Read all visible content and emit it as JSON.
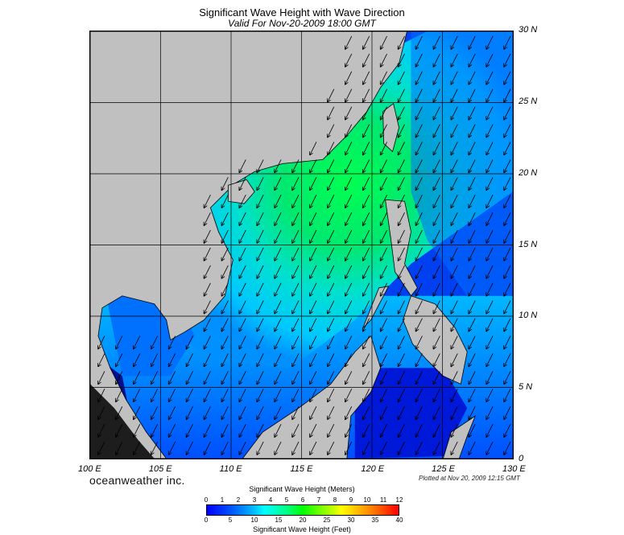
{
  "title": "Significant Wave Height with Wave Direction",
  "subtitle": "Valid For Nov-20-2009 18:00 GMT",
  "brand": "oceanweather inc.",
  "plotted": "Plotted at Nov 20, 2009 12:15 GMT",
  "map": {
    "lon_range": [
      100,
      130
    ],
    "lat_range": [
      0,
      30
    ],
    "lat_labels": [
      "30 N",
      "25 N",
      "20 N",
      "15 N",
      "10 N",
      "5 N",
      "0"
    ],
    "lon_labels": [
      "100 E",
      "105 E",
      "110 E",
      "115 E",
      "120 E",
      "125 E",
      "130 E"
    ],
    "grid": true,
    "land_color": "#c0c0c0"
  },
  "colorbar": {
    "title_meters": "Significant Wave Height (Meters)",
    "title_feet": "Significant Wave Height (Feet)",
    "meter_ticks": [
      "0",
      "1",
      "2",
      "3",
      "4",
      "5",
      "6",
      "7",
      "8",
      "9",
      "10",
      "11",
      "12"
    ],
    "feet_ticks": [
      "0",
      "5",
      "10",
      "15",
      "20",
      "25",
      "30",
      "35",
      "40"
    ]
  }
}
